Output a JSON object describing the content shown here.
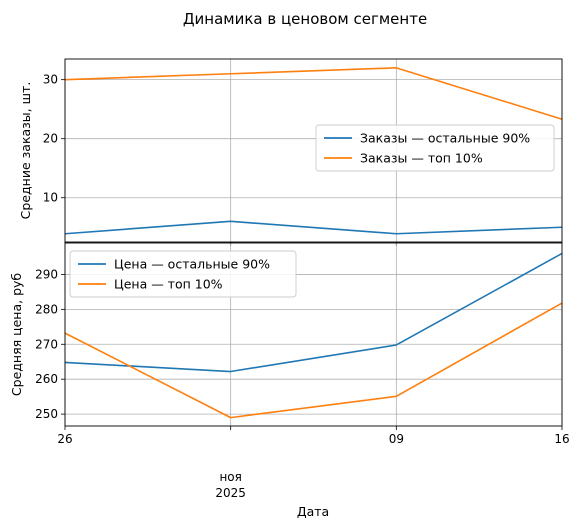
{
  "chart_data": {
    "type": "line",
    "title": "Динамика в ценовом сегменте",
    "xlabel": "Дата",
    "x_ticks": [
      {
        "date": "2025-10-26",
        "label": "26"
      },
      {
        "date": "2025-11-02",
        "label": ""
      },
      {
        "date": "2025-11-09",
        "label": "09"
      },
      {
        "date": "2025-11-16",
        "label": "16"
      }
    ],
    "x_minor_label": "ноя",
    "x_year_label": "2025",
    "x_minor_date": "2025-11-02",
    "x_range": [
      "2025-10-26",
      "2025-11-16"
    ],
    "grid": true,
    "colors": {
      "blue": "#1f77b4",
      "orange": "#ff7f0e",
      "grid": "#b0b0b0"
    },
    "panels": [
      {
        "ylabel": "Средние заказы, шт.",
        "ylim": [
          2.5,
          33.5
        ],
        "yticks": [
          10,
          20,
          30
        ],
        "legend_position": "center-right",
        "series": [
          {
            "name": "Заказы — остальные 90%",
            "color": "#1f77b4",
            "x": [
              "2025-10-26",
              "2025-11-02",
              "2025-11-09",
              "2025-11-16"
            ],
            "values": [
              3.9,
              6.0,
              3.9,
              5.0
            ]
          },
          {
            "name": "Заказы — топ 10%",
            "color": "#ff7f0e",
            "x": [
              "2025-10-26",
              "2025-11-02",
              "2025-11-09",
              "2025-11-16"
            ],
            "values": [
              30.0,
              31.0,
              32.0,
              23.3
            ]
          }
        ]
      },
      {
        "ylabel": "Средняя цена, руб",
        "ylim": [
          246.6,
          299.0
        ],
        "yticks": [
          250,
          260,
          270,
          280,
          290
        ],
        "legend_position": "top-left",
        "series": [
          {
            "name": "Цена — остальные 90%",
            "color": "#1f77b4",
            "x": [
              "2025-10-26",
              "2025-11-02",
              "2025-11-09",
              "2025-11-16"
            ],
            "values": [
              264.8,
              262.2,
              269.8,
              296.0
            ]
          },
          {
            "name": "Цена — топ 10%",
            "color": "#ff7f0e",
            "x": [
              "2025-10-26",
              "2025-11-02",
              "2025-11-09",
              "2025-11-16"
            ],
            "values": [
              273.2,
              249.0,
              255.1,
              281.8
            ]
          }
        ]
      }
    ]
  }
}
